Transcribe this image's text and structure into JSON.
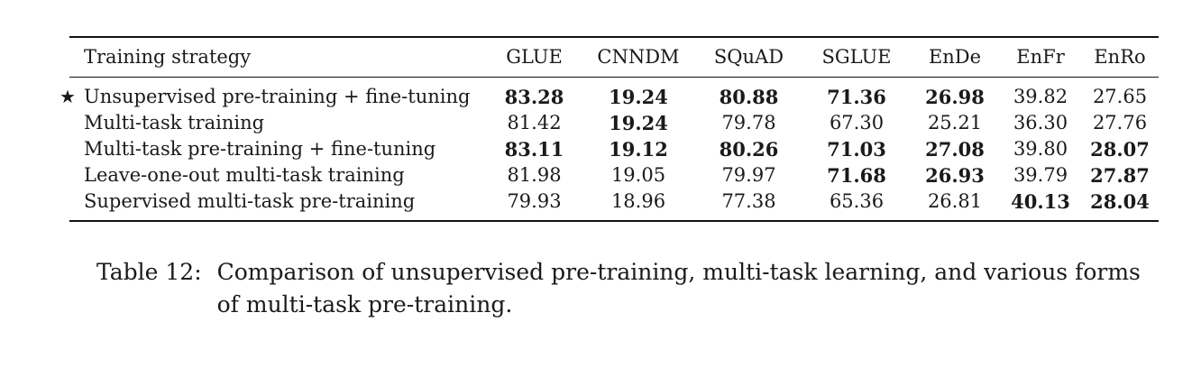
{
  "table": {
    "headers": [
      "Training strategy",
      "GLUE",
      "CNNDM",
      "SQuAD",
      "SGLUE",
      "EnDe",
      "EnFr",
      "EnRo"
    ],
    "star_symbol": "★",
    "rows": [
      {
        "starred": true,
        "strategy": "Unsupervised pre-training + fine-tuning",
        "values": [
          "83.28",
          "19.24",
          "80.88",
          "71.36",
          "26.98",
          "39.82",
          "27.65"
        ],
        "bold": [
          true,
          true,
          true,
          true,
          true,
          false,
          false
        ]
      },
      {
        "starred": false,
        "strategy": "Multi-task training",
        "values": [
          "81.42",
          "19.24",
          "79.78",
          "67.30",
          "25.21",
          "36.30",
          "27.76"
        ],
        "bold": [
          false,
          true,
          false,
          false,
          false,
          false,
          false
        ]
      },
      {
        "starred": false,
        "strategy": "Multi-task pre-training + fine-tuning",
        "values": [
          "83.11",
          "19.12",
          "80.26",
          "71.03",
          "27.08",
          "39.80",
          "28.07"
        ],
        "bold": [
          true,
          true,
          true,
          true,
          true,
          false,
          true
        ]
      },
      {
        "starred": false,
        "strategy": "Leave-one-out multi-task training",
        "values": [
          "81.98",
          "19.05",
          "79.97",
          "71.68",
          "26.93",
          "39.79",
          "27.87"
        ],
        "bold": [
          false,
          false,
          false,
          true,
          true,
          false,
          true
        ]
      },
      {
        "starred": false,
        "strategy": "Supervised multi-task pre-training",
        "values": [
          "79.93",
          "18.96",
          "77.38",
          "65.36",
          "26.81",
          "40.13",
          "28.04"
        ],
        "bold": [
          false,
          false,
          false,
          false,
          false,
          true,
          true
        ]
      }
    ]
  },
  "caption": {
    "label": "Table 12:",
    "text": "Comparison of unsupervised pre-training, multi-task learning, and various forms of multi-task pre-training."
  }
}
